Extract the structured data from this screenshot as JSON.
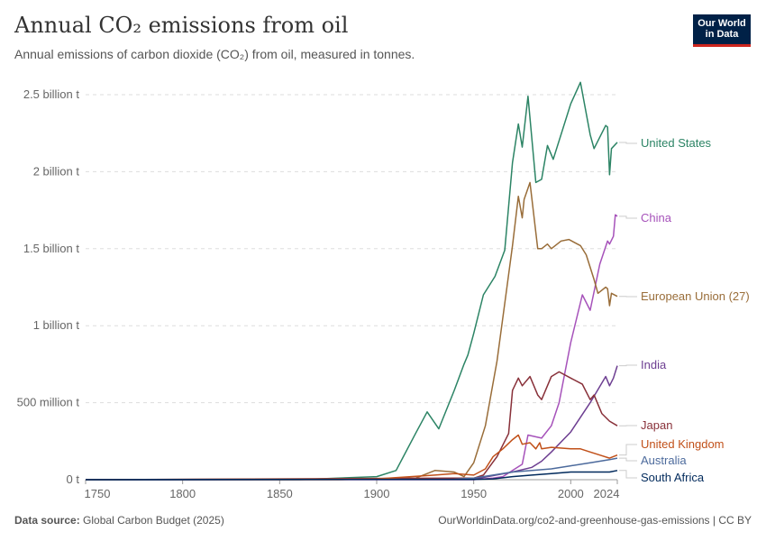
{
  "header": {
    "title": "Annual CO₂ emissions from oil",
    "subtitle": "Annual emissions of carbon dioxide (CO₂) from oil, measured in tonnes.",
    "logo": "Our World in Data"
  },
  "footer": {
    "source_label": "Data source:",
    "source": "Global Carbon Budget (2025)",
    "link": "OurWorldinData.org/co2-and-greenhouse-gas-emissions | CC BY"
  },
  "chart_data": {
    "type": "line",
    "xlim": [
      1750,
      2024
    ],
    "ylim": [
      0,
      2500000000
    ],
    "grid": true,
    "legend": "right-end-labels",
    "x_ticks": [
      "1750",
      "1800",
      "1850",
      "1900",
      "1950",
      "2000",
      "2024"
    ],
    "y_ticks": [
      {
        "v": 0,
        "label": "0 t"
      },
      {
        "v": 500000000,
        "label": "500 million t"
      },
      {
        "v": 1000000000,
        "label": "1 billion t"
      },
      {
        "v": 1500000000,
        "label": "1.5 billion t"
      },
      {
        "v": 2000000000,
        "label": "2 billion t"
      },
      {
        "v": 2500000000,
        "label": "2.5 billion t"
      }
    ],
    "series": [
      {
        "name": "United States",
        "color": "#2c8465",
        "x": [
          1750,
          1860,
          1880,
          1900,
          1910,
          1920,
          1926,
          1932,
          1940,
          1945,
          1947,
          1950,
          1955,
          1961,
          1966,
          1970,
          1973,
          1975,
          1978,
          1982,
          1985,
          1988,
          1991,
          2000,
          2005,
          2010,
          2012,
          2018,
          2019,
          2020,
          2021,
          2024
        ],
        "y": [
          0,
          0,
          0.01,
          0.02,
          0.06,
          0.3,
          0.44,
          0.33,
          0.58,
          0.75,
          0.81,
          0.95,
          1.2,
          1.32,
          1.49,
          2.06,
          2.31,
          2.16,
          2.49,
          1.93,
          1.95,
          2.17,
          2.08,
          2.44,
          2.58,
          2.24,
          2.15,
          2.3,
          2.29,
          1.98,
          2.15,
          2.19
        ]
      },
      {
        "name": "China",
        "color": "#a652ba",
        "x": [
          1750,
          1950,
          1960,
          1965,
          1970,
          1975,
          1978,
          1985,
          1990,
          1994,
          2000,
          2006,
          2010,
          2015,
          2019,
          2020,
          2022,
          2023,
          2024
        ],
        "y": [
          0,
          0,
          0.01,
          0.02,
          0.06,
          0.1,
          0.29,
          0.27,
          0.35,
          0.5,
          0.89,
          1.2,
          1.1,
          1.4,
          1.55,
          1.53,
          1.58,
          1.72,
          1.71
        ]
      },
      {
        "name": "European Union (27)",
        "color": "#996d39",
        "x": [
          1750,
          1880,
          1920,
          1930,
          1940,
          1945,
          1950,
          1956,
          1962,
          1967,
          1970,
          1973,
          1975,
          1976,
          1979,
          1983,
          1985,
          1988,
          1990,
          1995,
          1999,
          2005,
          2008,
          2012,
          2014,
          2018,
          2019,
          2020,
          2021,
          2024
        ],
        "y": [
          0,
          0,
          0.01,
          0.06,
          0.05,
          0.02,
          0.11,
          0.35,
          0.77,
          1.24,
          1.52,
          1.84,
          1.7,
          1.82,
          1.93,
          1.5,
          1.5,
          1.53,
          1.5,
          1.55,
          1.56,
          1.52,
          1.46,
          1.3,
          1.21,
          1.25,
          1.24,
          1.13,
          1.21,
          1.19
        ]
      },
      {
        "name": "India",
        "color": "#6d3e91",
        "x": [
          1750,
          1950,
          1970,
          1980,
          1985,
          1990,
          2000,
          2010,
          2018,
          2020,
          2022,
          2024
        ],
        "y": [
          0,
          0.003,
          0.05,
          0.08,
          0.12,
          0.18,
          0.31,
          0.5,
          0.67,
          0.61,
          0.66,
          0.74
        ]
      },
      {
        "name": "Japan",
        "color": "#883039",
        "x": [
          1750,
          1940,
          1950,
          1955,
          1962,
          1968,
          1970,
          1973,
          1975,
          1979,
          1983,
          1985,
          1990,
          1994,
          2000,
          2006,
          2010,
          2012,
          2016,
          2020,
          2024
        ],
        "y": [
          0,
          0.01,
          0.01,
          0.03,
          0.15,
          0.3,
          0.58,
          0.66,
          0.61,
          0.67,
          0.55,
          0.52,
          0.67,
          0.7,
          0.66,
          0.62,
          0.52,
          0.55,
          0.43,
          0.38,
          0.35
        ]
      },
      {
        "name": "United Kingdom",
        "color": "#c15019",
        "x": [
          1750,
          1900,
          1930,
          1940,
          1950,
          1956,
          1960,
          1965,
          1970,
          1973,
          1975,
          1979,
          1982,
          1984,
          1985,
          1990,
          2000,
          2005,
          2010,
          2015,
          2020,
          2024
        ],
        "y": [
          0,
          0.005,
          0.03,
          0.04,
          0.03,
          0.07,
          0.15,
          0.2,
          0.26,
          0.29,
          0.23,
          0.24,
          0.2,
          0.24,
          0.2,
          0.21,
          0.2,
          0.2,
          0.18,
          0.16,
          0.14,
          0.16
        ]
      },
      {
        "name": "Australia",
        "color": "#4c6a9c",
        "x": [
          1750,
          1940,
          1950,
          1960,
          1970,
          1980,
          1990,
          2000,
          2010,
          2020,
          2024
        ],
        "y": [
          0,
          0.003,
          0.01,
          0.03,
          0.05,
          0.06,
          0.07,
          0.09,
          0.11,
          0.13,
          0.14
        ]
      },
      {
        "name": "South Africa",
        "color": "#00295b",
        "x": [
          1750,
          1950,
          1960,
          1970,
          1980,
          1990,
          2000,
          2010,
          2020,
          2024
        ],
        "y": [
          0,
          0.002,
          0.005,
          0.02,
          0.03,
          0.04,
          0.05,
          0.05,
          0.05,
          0.06
        ]
      }
    ],
    "y_unit_note": "series y values in billion tonnes"
  }
}
